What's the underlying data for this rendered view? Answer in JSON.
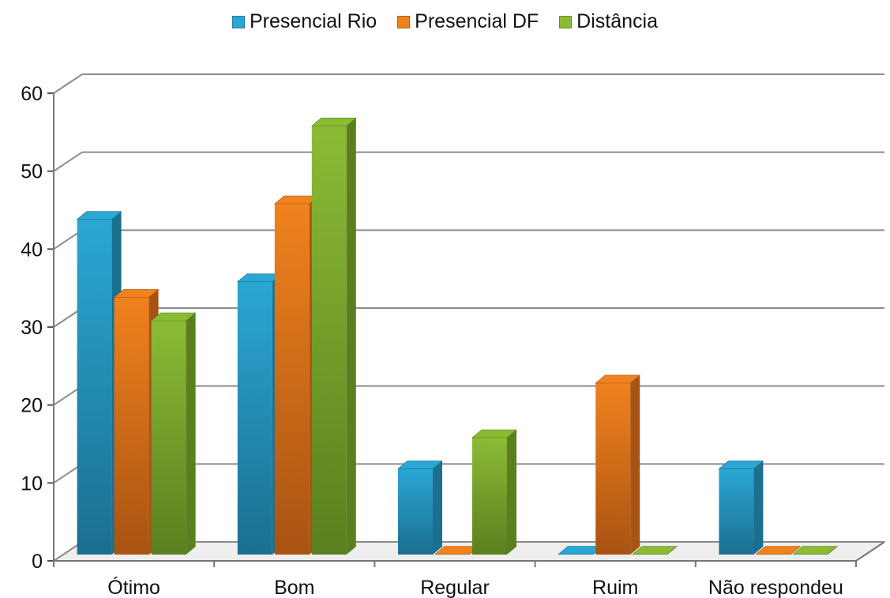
{
  "chart_data": {
    "type": "bar",
    "categories": [
      "Ótimo",
      "Bom",
      "Regular",
      "Ruim",
      "Não respondeu"
    ],
    "series": [
      {
        "name": "Presencial Rio",
        "values": [
          43,
          35,
          11,
          0,
          11
        ],
        "color": "#2aa7d4",
        "side": "#1b6f8f"
      },
      {
        "name": "Presencial DF",
        "values": [
          33,
          45,
          0,
          22,
          0
        ],
        "color": "#f0821e",
        "side": "#a85312"
      },
      {
        "name": "Distância",
        "values": [
          30,
          55,
          15,
          0,
          0
        ],
        "color": "#8bbb35",
        "side": "#5a7f1f"
      }
    ],
    "y_ticks": [
      "0",
      "10",
      "20",
      "30",
      "40",
      "50",
      "60"
    ],
    "ylim": [
      0,
      60
    ],
    "grid": true,
    "legend_position": "top-center",
    "title": "",
    "xlabel": "",
    "ylabel": ""
  }
}
